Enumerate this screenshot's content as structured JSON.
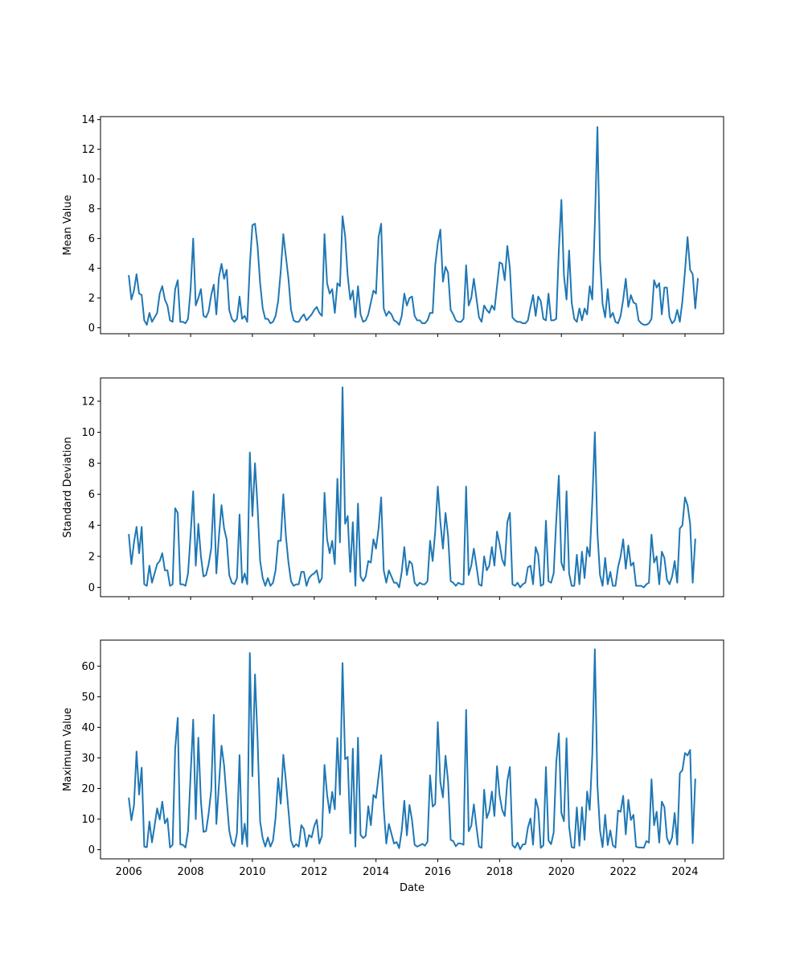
{
  "style": {
    "line_color": "#1f77b4"
  },
  "chart_data": [
    {
      "type": "line",
      "title": "",
      "xlabel": "",
      "ylabel": "Mean Value",
      "x_start": "2006-01",
      "x_step": "month",
      "xlim": [
        "2005-02",
        "2025-04"
      ],
      "xticks": [
        "2006",
        "2008",
        "2010",
        "2012",
        "2014",
        "2016",
        "2018",
        "2020",
        "2022",
        "2024"
      ],
      "xtick_labels": [],
      "ylim": [
        -0.4,
        14.2
      ],
      "yticks": [
        0,
        2,
        4,
        6,
        8,
        10,
        12,
        14
      ],
      "grid": false,
      "series": [
        {
          "values": [
            3.5,
            1.9,
            2.5,
            3.6,
            2.3,
            2.2,
            0.5,
            0.2,
            1.0,
            0.4,
            0.7,
            1.0,
            2.3,
            2.8,
            1.9,
            1.5,
            0.5,
            0.4,
            2.6,
            3.2,
            0.4,
            0.4,
            0.3,
            0.6,
            2.6,
            6.0,
            1.5,
            2.0,
            2.6,
            0.8,
            0.7,
            1.1,
            2.2,
            2.9,
            0.9,
            3.4,
            4.3,
            3.3,
            3.9,
            1.2,
            0.6,
            0.4,
            0.6,
            2.1,
            0.6,
            0.8,
            0.4,
            4.2,
            6.9,
            7.0,
            5.5,
            3.0,
            1.3,
            0.6,
            0.6,
            0.3,
            0.4,
            0.8,
            1.8,
            3.8,
            6.3,
            4.8,
            3.3,
            1.2,
            0.5,
            0.4,
            0.4,
            0.7,
            0.9,
            0.5,
            0.7,
            0.9,
            1.2,
            1.4,
            1.0,
            0.8,
            6.3,
            3.0,
            2.3,
            2.6,
            1.0,
            3.0,
            2.8,
            7.5,
            6.2,
            3.5,
            1.9,
            2.5,
            0.7,
            2.8,
            0.9,
            0.4,
            0.5,
            0.9,
            1.7,
            2.5,
            2.3,
            6.1,
            7.0,
            1.3,
            0.8,
            1.1,
            0.9,
            0.5,
            0.4,
            0.2,
            0.8,
            2.3,
            1.5,
            2.0,
            2.1,
            0.8,
            0.5,
            0.5,
            0.3,
            0.3,
            0.5,
            1.0,
            1.0,
            4.2,
            5.7,
            6.6,
            3.1,
            4.1,
            3.7,
            1.2,
            0.9,
            0.5,
            0.4,
            0.4,
            0.6,
            4.2,
            1.5,
            2.0,
            3.3,
            2.0,
            0.7,
            0.4,
            1.5,
            1.2,
            1.0,
            1.5,
            1.2,
            2.8,
            4.4,
            4.3,
            3.2,
            5.5,
            4.0,
            0.7,
            0.5,
            0.4,
            0.4,
            0.3,
            0.3,
            0.5,
            1.4,
            2.2,
            0.8,
            2.1,
            1.8,
            0.6,
            0.5,
            2.3,
            0.5,
            0.5,
            0.6,
            5.2,
            8.6,
            3.5,
            1.9,
            5.2,
            1.7,
            0.6,
            0.4,
            1.3,
            0.5,
            1.3,
            0.9,
            2.8,
            1.9,
            7.0,
            13.5,
            4.6,
            1.6,
            0.7,
            2.6,
            0.7,
            1.0,
            0.4,
            0.3,
            0.8,
            1.9,
            3.3,
            1.4,
            2.2,
            1.7,
            1.6,
            0.5,
            0.3,
            0.2,
            0.2,
            0.3,
            0.6,
            3.2,
            2.7,
            3.0,
            0.9,
            2.7,
            2.7,
            0.7,
            0.3,
            0.5,
            1.2,
            0.4,
            1.8,
            3.8,
            6.1,
            3.9,
            3.6,
            1.3,
            3.3
          ]
        }
      ]
    },
    {
      "type": "line",
      "title": "",
      "xlabel": "",
      "ylabel": "Standard Deviation",
      "x_start": "2006-01",
      "x_step": "month",
      "xlim": [
        "2005-02",
        "2025-04"
      ],
      "xticks": [
        "2006",
        "2008",
        "2010",
        "2012",
        "2014",
        "2016",
        "2018",
        "2020",
        "2022",
        "2024"
      ],
      "xtick_labels": [],
      "ylim": [
        -0.6,
        13.5
      ],
      "yticks": [
        0,
        2,
        4,
        6,
        8,
        10,
        12
      ],
      "grid": false,
      "series": [
        {
          "values": [
            3.4,
            1.5,
            2.9,
            3.9,
            2.2,
            3.9,
            0.2,
            0.1,
            1.4,
            0.3,
            0.9,
            1.5,
            1.7,
            2.2,
            1.1,
            1.1,
            0.1,
            0.2,
            5.1,
            4.8,
            0.2,
            0.2,
            0.1,
            0.9,
            3.4,
            6.2,
            1.4,
            4.1,
            2.0,
            0.7,
            0.8,
            1.5,
            2.5,
            6.0,
            0.9,
            3.3,
            5.3,
            3.8,
            3.1,
            0.8,
            0.3,
            0.2,
            0.6,
            4.7,
            0.3,
            0.9,
            0.2,
            8.7,
            4.6,
            8.0,
            5.2,
            1.7,
            0.6,
            0.1,
            0.6,
            0.1,
            0.3,
            1.1,
            3.0,
            3.0,
            6.0,
            3.3,
            1.6,
            0.4,
            0.1,
            0.2,
            0.2,
            1.0,
            1.0,
            0.1,
            0.6,
            0.8,
            0.9,
            1.1,
            0.3,
            0.6,
            6.1,
            3.1,
            2.2,
            3.0,
            1.5,
            7.0,
            2.9,
            12.9,
            4.1,
            4.6,
            1.0,
            4.2,
            0.1,
            5.4,
            0.7,
            0.4,
            0.7,
            1.7,
            1.6,
            3.1,
            2.5,
            3.8,
            5.8,
            1.1,
            0.3,
            1.1,
            0.7,
            0.3,
            0.3,
            0.0,
            1.0,
            2.6,
            0.8,
            1.7,
            1.5,
            0.3,
            0.1,
            0.3,
            0.2,
            0.2,
            0.4,
            3.0,
            1.7,
            3.6,
            6.5,
            4.2,
            2.5,
            4.8,
            3.3,
            0.4,
            0.3,
            0.1,
            0.3,
            0.2,
            0.2,
            6.5,
            0.8,
            1.4,
            2.5,
            1.4,
            0.2,
            0.1,
            2.0,
            1.1,
            1.4,
            2.6,
            1.4,
            3.6,
            2.8,
            1.8,
            1.4,
            4.2,
            4.8,
            0.2,
            0.1,
            0.3,
            0.0,
            0.2,
            0.3,
            1.3,
            1.4,
            0.2,
            2.6,
            2.1,
            0.1,
            0.2,
            4.3,
            0.4,
            0.3,
            0.9,
            4.3,
            7.2,
            1.6,
            1.1,
            6.2,
            0.9,
            0.1,
            0.1,
            2.1,
            0.2,
            2.3,
            0.6,
            2.6,
            2.0,
            5.5,
            10.0,
            3.5,
            0.8,
            0.1,
            1.9,
            0.2,
            1.0,
            0.1,
            0.1,
            1.3,
            2.0,
            3.1,
            1.2,
            2.7,
            1.4,
            1.6,
            0.1,
            0.1,
            0.1,
            0.0,
            0.2,
            0.3,
            3.4,
            1.6,
            2.0,
            0.2,
            2.3,
            1.9,
            0.5,
            0.2,
            0.7,
            1.7,
            0.3,
            3.8,
            4.0,
            5.8,
            5.3,
            4.1,
            0.3,
            3.1
          ]
        }
      ]
    },
    {
      "type": "line",
      "title": "",
      "xlabel": "Date",
      "ylabel": "Maximum Value",
      "x_start": "2006-01",
      "x_step": "month",
      "xlim": [
        "2005-02",
        "2025-04"
      ],
      "xticks": [
        "2006",
        "2008",
        "2010",
        "2012",
        "2014",
        "2016",
        "2018",
        "2020",
        "2022",
        "2024"
      ],
      "xtick_labels": [
        "2006",
        "2008",
        "2010",
        "2012",
        "2014",
        "2016",
        "2018",
        "2020",
        "2022",
        "2024"
      ],
      "ylim": [
        -3,
        68.5
      ],
      "yticks": [
        0,
        10,
        20,
        30,
        40,
        50,
        60
      ],
      "grid": false,
      "series": [
        {
          "values": [
            16.8,
            9.6,
            14.5,
            32.1,
            18.0,
            26.8,
            1.0,
            0.8,
            9.2,
            2.4,
            7.8,
            13.5,
            9.9,
            15.7,
            8.6,
            10.2,
            0.7,
            1.6,
            33.0,
            43.1,
            1.7,
            1.6,
            0.7,
            6.1,
            24.5,
            42.5,
            10.0,
            36.6,
            15.8,
            5.8,
            6.1,
            11.8,
            19.4,
            44.1,
            8.4,
            21.2,
            34.0,
            27.6,
            16.5,
            6.2,
            2.2,
            1.1,
            5.4,
            30.9,
            1.8,
            8.5,
            1.0,
            64.3,
            24.0,
            57.3,
            36.2,
            9.2,
            3.7,
            1.0,
            4.0,
            1.0,
            3.0,
            10.5,
            23.4,
            15.0,
            31.0,
            22.5,
            12.8,
            3.0,
            0.8,
            1.8,
            1.0,
            8.0,
            6.7,
            1.0,
            4.8,
            4.0,
            7.7,
            9.8,
            2.0,
            4.5,
            27.7,
            18.0,
            12.0,
            18.9,
            13.2,
            36.5,
            18.0,
            61.0,
            29.6,
            30.3,
            5.3,
            33.0,
            1.0,
            36.6,
            4.8,
            3.8,
            4.5,
            14.2,
            8.0,
            17.9,
            16.9,
            24.0,
            30.9,
            13.4,
            2.0,
            8.4,
            5.2,
            2.0,
            2.5,
            0.5,
            6.3,
            16.0,
            4.7,
            14.6,
            9.6,
            1.6,
            1.0,
            1.4,
            1.9,
            1.3,
            2.6,
            24.3,
            14.1,
            14.9,
            41.7,
            22.0,
            17.1,
            30.7,
            22.3,
            3.2,
            2.8,
            1.1,
            2.1,
            2.0,
            1.6,
            45.7,
            6.0,
            7.8,
            14.8,
            7.5,
            1.0,
            0.6,
            19.6,
            10.3,
            12.6,
            19.0,
            11.0,
            27.3,
            17.8,
            13.0,
            11.0,
            22.5,
            27.0,
            1.5,
            0.6,
            2.3,
            0.1,
            1.7,
            1.8,
            7.2,
            10.2,
            1.6,
            16.6,
            13.4,
            0.6,
            1.4,
            27.0,
            3.0,
            1.8,
            5.6,
            28.4,
            38.0,
            12.0,
            9.3,
            36.4,
            7.5,
            0.8,
            0.6,
            13.8,
            1.3,
            13.9,
            3.2,
            19.0,
            13.0,
            31.0,
            65.5,
            21.0,
            6.3,
            0.8,
            11.4,
            1.5,
            6.3,
            1.4,
            0.7,
            12.8,
            12.4,
            17.6,
            5.0,
            16.3,
            9.7,
            11.4,
            1.0,
            0.7,
            0.7,
            0.6,
            2.8,
            2.3,
            23.0,
            8.0,
            12.4,
            2.3,
            15.7,
            13.9,
            3.8,
            1.8,
            4.0,
            12.0,
            1.6,
            25.0,
            26.0,
            31.6,
            30.8,
            32.6,
            2.1,
            23.0
          ]
        }
      ]
    }
  ]
}
